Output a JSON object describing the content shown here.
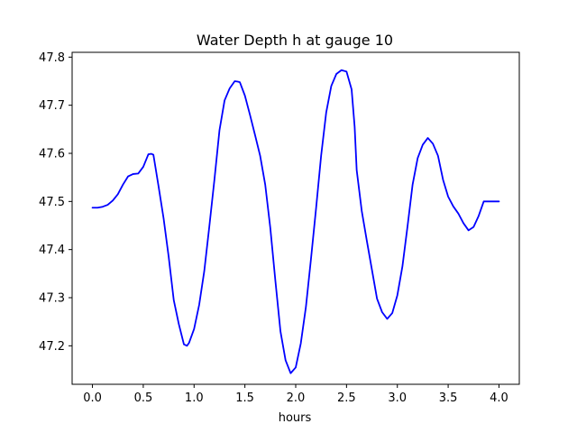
{
  "chart_data": {
    "type": "line",
    "title": "Water Depth h at gauge 10",
    "xlabel": "hours",
    "ylabel": "",
    "xlim": [
      -0.2,
      4.2
    ],
    "ylim": [
      47.12,
      47.81
    ],
    "xticks": [
      "0.0",
      "0.5",
      "1.0",
      "1.5",
      "2.0",
      "2.5",
      "3.0",
      "3.5",
      "4.0"
    ],
    "yticks": [
      "47.2",
      "47.3",
      "47.4",
      "47.5",
      "47.6",
      "47.7",
      "47.8"
    ],
    "grid": false,
    "legend": "none",
    "series": [
      {
        "color": "#0000ff",
        "x": [
          0.0,
          0.05,
          0.1,
          0.15,
          0.2,
          0.25,
          0.3,
          0.35,
          0.4,
          0.45,
          0.5,
          0.55,
          0.58,
          0.6,
          0.65,
          0.7,
          0.75,
          0.8,
          0.85,
          0.9,
          0.93,
          0.95,
          1.0,
          1.05,
          1.1,
          1.15,
          1.2,
          1.25,
          1.3,
          1.35,
          1.4,
          1.43,
          1.45,
          1.5,
          1.55,
          1.6,
          1.65,
          1.7,
          1.75,
          1.8,
          1.85,
          1.9,
          1.95,
          2.0,
          2.05,
          2.1,
          2.15,
          2.2,
          2.25,
          2.3,
          2.35,
          2.4,
          2.45,
          2.5,
          2.55,
          2.58,
          2.6,
          2.65,
          2.7,
          2.75,
          2.8,
          2.85,
          2.9,
          2.95,
          3.0,
          3.05,
          3.1,
          3.15,
          3.2,
          3.25,
          3.3,
          3.35,
          3.4,
          3.45,
          3.5,
          3.55,
          3.6,
          3.65,
          3.7,
          3.75,
          3.8,
          3.85,
          3.9,
          3.95,
          4.0
        ],
        "values": [
          47.487,
          47.487,
          47.489,
          47.493,
          47.502,
          47.515,
          47.535,
          47.552,
          47.557,
          47.558,
          47.572,
          47.598,
          47.599,
          47.597,
          47.532,
          47.465,
          47.385,
          47.295,
          47.245,
          47.203,
          47.2,
          47.206,
          47.235,
          47.285,
          47.355,
          47.448,
          47.545,
          47.648,
          47.71,
          47.735,
          47.75,
          47.749,
          47.748,
          47.72,
          47.68,
          47.638,
          47.595,
          47.535,
          47.445,
          47.335,
          47.23,
          47.17,
          47.143,
          47.155,
          47.205,
          47.28,
          47.38,
          47.485,
          47.595,
          47.685,
          47.74,
          47.765,
          47.773,
          47.77,
          47.733,
          47.655,
          47.565,
          47.48,
          47.418,
          47.358,
          47.298,
          47.27,
          47.256,
          47.268,
          47.305,
          47.365,
          47.448,
          47.535,
          47.59,
          47.618,
          47.632,
          47.62,
          47.595,
          47.545,
          47.51,
          47.49,
          47.475,
          47.455,
          47.44,
          47.447,
          47.47,
          47.5,
          47.5,
          47.5,
          47.5
        ]
      }
    ]
  }
}
